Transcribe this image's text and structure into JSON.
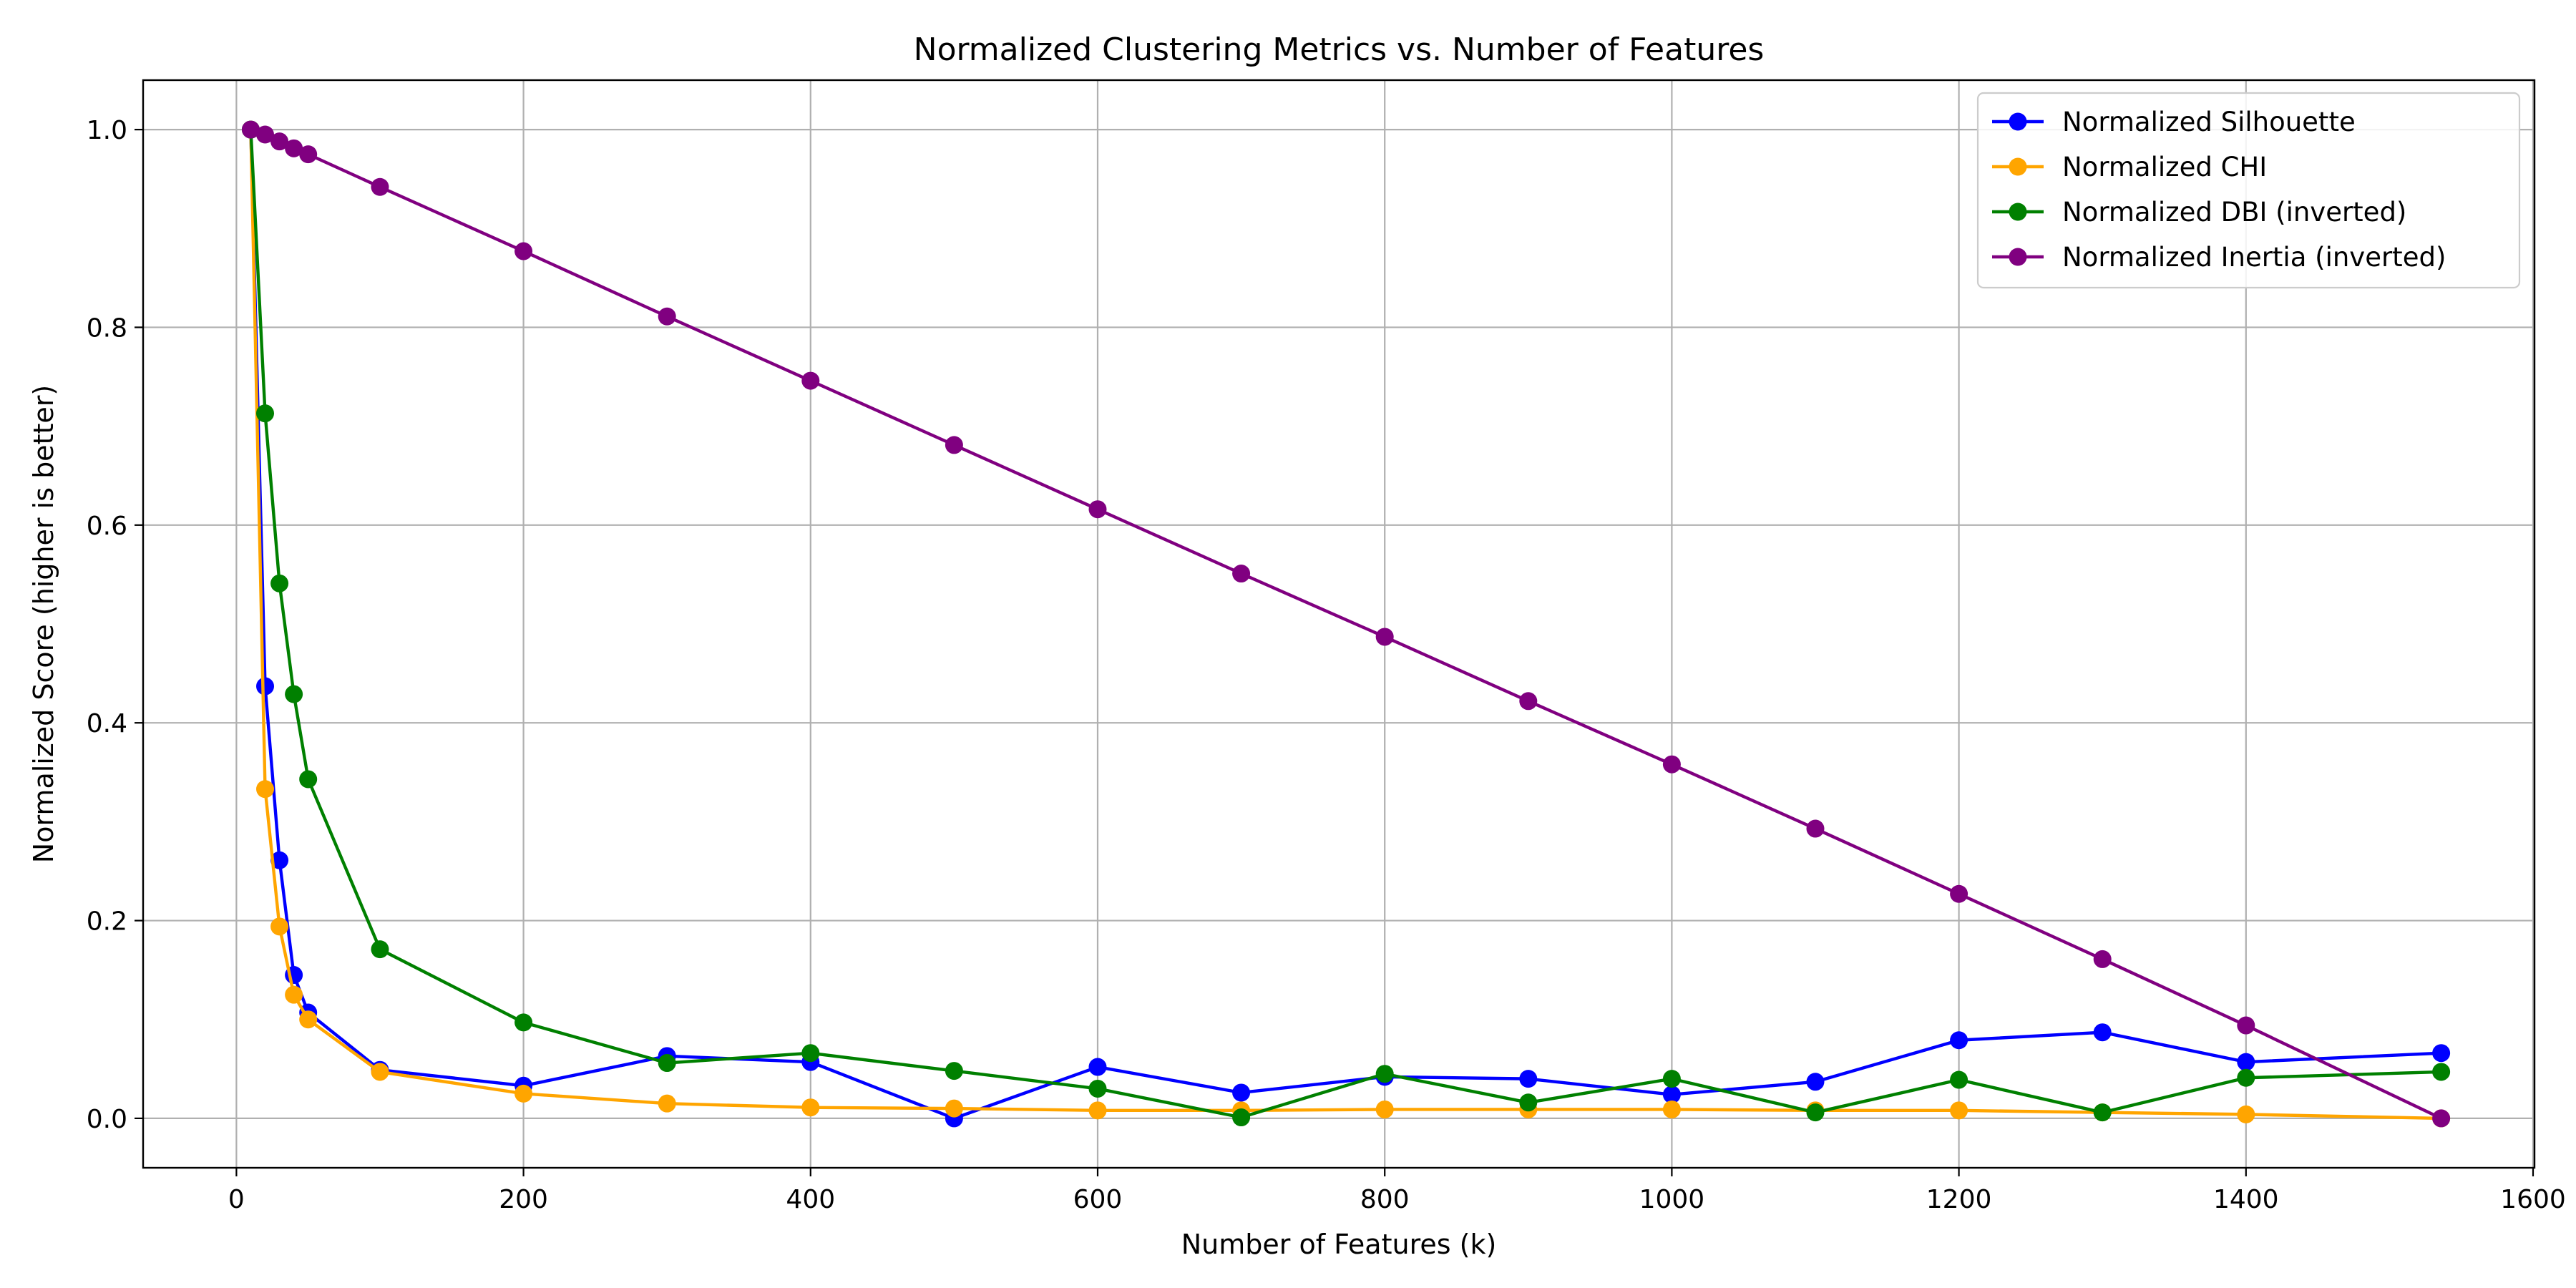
{
  "chart_data": {
    "type": "line",
    "title": "Normalized Clustering Metrics vs. Number of Features",
    "xlabel": "Number of Features (k)",
    "ylabel": "Normalized Score (higher is better)",
    "xlim": [
      -65,
      1601
    ],
    "ylim": [
      -0.05,
      1.05
    ],
    "xticks": [
      0,
      200,
      400,
      600,
      800,
      1000,
      1200,
      1400,
      1600
    ],
    "yticks": [
      0.0,
      0.2,
      0.4,
      0.6,
      0.8,
      1.0
    ],
    "xtick_labels": [
      "0",
      "200",
      "400",
      "600",
      "800",
      "1000",
      "1200",
      "1400",
      "1600"
    ],
    "ytick_labels": [
      "0.0",
      "0.2",
      "0.4",
      "0.6",
      "0.8",
      "1.0"
    ],
    "grid": true,
    "legend_position": "top-right",
    "x": [
      10,
      20,
      30,
      40,
      50,
      100,
      200,
      300,
      400,
      500,
      600,
      700,
      800,
      900,
      1000,
      1100,
      1200,
      1300,
      1400,
      1536
    ],
    "series": [
      {
        "name": "Normalized Silhouette",
        "color": "#0000ff",
        "values": [
          1.0,
          0.437,
          0.261,
          0.145,
          0.107,
          0.049,
          0.033,
          0.063,
          0.057,
          0.0,
          0.052,
          0.026,
          0.042,
          0.04,
          0.024,
          0.037,
          0.079,
          0.087,
          0.057,
          0.066
        ]
      },
      {
        "name": "Normalized CHI",
        "color": "#ffa500",
        "values": [
          1.0,
          0.333,
          0.194,
          0.125,
          0.1,
          0.047,
          0.025,
          0.015,
          0.011,
          0.01,
          0.008,
          0.008,
          0.009,
          0.009,
          0.009,
          0.008,
          0.008,
          0.006,
          0.004,
          0.0
        ]
      },
      {
        "name": "Normalized DBI (inverted)",
        "color": "#008000",
        "values": [
          1.0,
          0.713,
          0.541,
          0.429,
          0.343,
          0.171,
          0.097,
          0.056,
          0.066,
          0.048,
          0.03,
          0.001,
          0.045,
          0.016,
          0.04,
          0.006,
          0.039,
          0.006,
          0.041,
          0.047
        ]
      },
      {
        "name": "Normalized Inertia (inverted)",
        "color": "#800080",
        "values": [
          1.0,
          0.995,
          0.988,
          0.981,
          0.975,
          0.942,
          0.877,
          0.811,
          0.746,
          0.681,
          0.616,
          0.551,
          0.487,
          0.422,
          0.358,
          0.293,
          0.227,
          0.161,
          0.094,
          0.0
        ]
      }
    ]
  }
}
